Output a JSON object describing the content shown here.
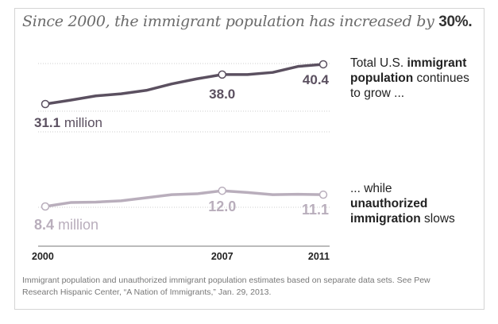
{
  "title": {
    "prefix": "Since 2000, the immigrant population has increased by ",
    "emphasis": "30%."
  },
  "chart_data": {
    "type": "line",
    "x": [
      2000,
      2001,
      2002,
      2003,
      2004,
      2005,
      2006,
      2007,
      2008,
      2009,
      2010,
      2011
    ],
    "xticks": [
      "2000",
      "2007",
      "2011"
    ],
    "unit": "million",
    "series": [
      {
        "values": [
          31.1,
          32.0,
          33.0,
          33.5,
          34.3,
          35.8,
          37.0,
          38.0,
          38.0,
          38.5,
          39.9,
          40.4
        ],
        "color": "#5b5060",
        "labels": {
          "first": "31.1",
          "first_unit": " million",
          "mid": "38.0",
          "last": "40.4"
        }
      },
      {
        "values": [
          8.4,
          9.3,
          9.4,
          9.7,
          10.4,
          11.1,
          11.3,
          12.0,
          11.6,
          11.1,
          11.2,
          11.1
        ],
        "color": "#b9aebc",
        "labels": {
          "first": "8.4",
          "first_unit": " million",
          "mid": "12.0",
          "last": "11.1"
        }
      }
    ],
    "grid": true
  },
  "annotations": {
    "top": {
      "a": "Total U.S. ",
      "b": "immigrant",
      "c": "population",
      "d": " continues",
      "e": "to grow ..."
    },
    "bottom": {
      "a": "... while",
      "b": "unauthorized",
      "c": "immigration",
      "d": " slows"
    }
  },
  "footnote": {
    "line1": "Immigrant population and unauthorized immigrant population estimates based on separate data sets. See Pew",
    "line2": "Research Hispanic Center, “A Nation of Immigrants,” Jan. 29, 2013."
  }
}
